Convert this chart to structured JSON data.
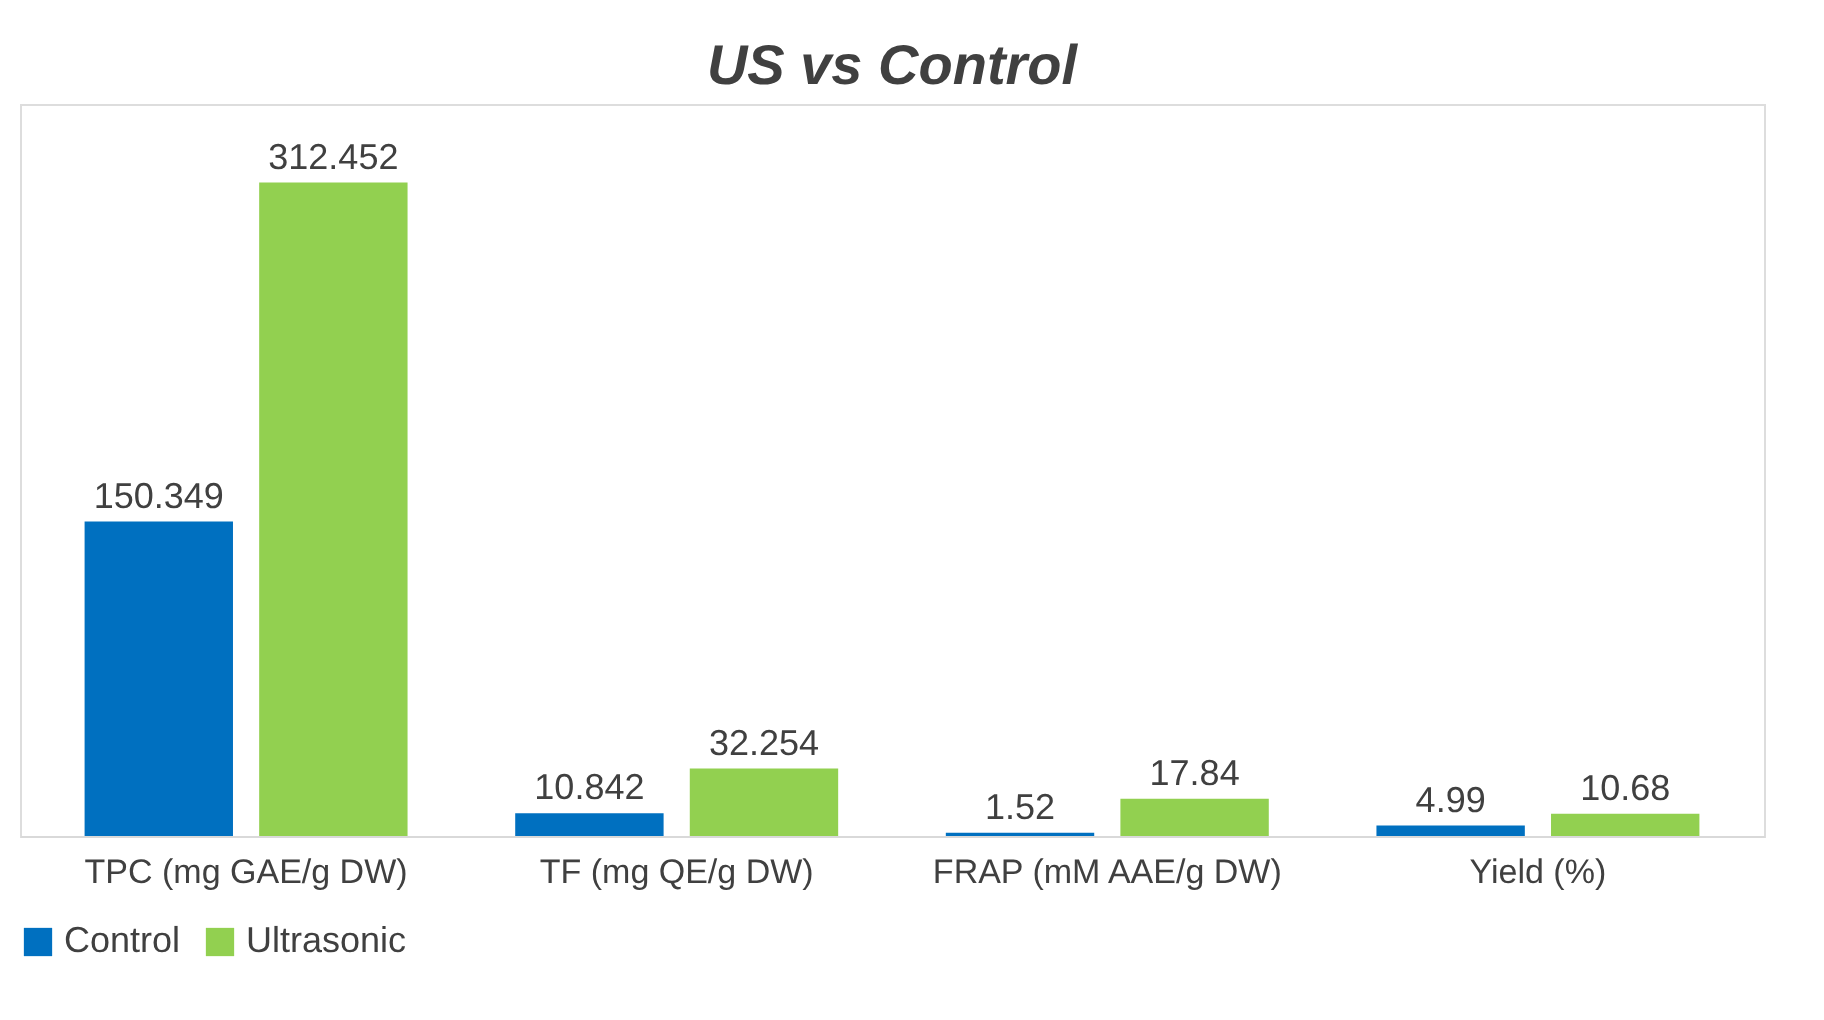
{
  "chart_data": {
    "type": "bar",
    "title": "US vs Control",
    "categories": [
      "TPC (mg GAE/g DW)",
      "TF (mg QE/g DW)",
      "FRAP (mM AAE/g DW)",
      "Yield (%)"
    ],
    "series": [
      {
        "name": "Control",
        "color": "#0070c0",
        "values": [
          150.349,
          10.842,
          1.52,
          4.99
        ]
      },
      {
        "name": "Ultrasonic",
        "color": "#92d050",
        "values": [
          312.452,
          32.254,
          17.84,
          10.68
        ]
      }
    ],
    "data_labels": true,
    "legend": "bottom",
    "grid": false,
    "tick_labels": "x"
  }
}
